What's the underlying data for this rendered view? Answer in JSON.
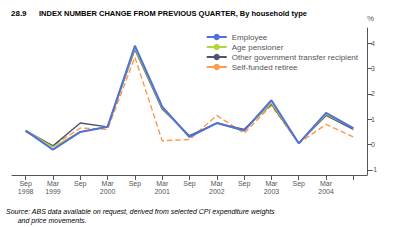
{
  "chart_data": {
    "type": "line",
    "title": "28.9",
    "subtitle": "INDEX NUMBER CHANGE FROM PREVIOUS QUARTER, By household type",
    "annotations": [
      "Source: ABS data available on request, derived from selected CPI expenditure weights\n      and price movements."
    ],
    "ylabel": "%",
    "categories": [
      "Sep\n1998",
      "Mar\n1999",
      "Sep",
      "Mar\n2000",
      "Sep",
      "Mar\n2001",
      "Sep",
      "Mar\n2002",
      "Sep",
      "Mar\n2003",
      "Sep",
      "Mar\n2004",
      null
    ],
    "series": [
      {
        "name": "Employee",
        "line_style": "solid",
        "values": [
          0.55,
          -0.2,
          0.5,
          0.7,
          3.9,
          1.5,
          0.3,
          0.85,
          0.55,
          1.75,
          0.05,
          1.25,
          0.65
        ]
      },
      {
        "name": "Age pensioner",
        "line_style": "solid",
        "values": [
          0.55,
          -0.1,
          0.5,
          0.7,
          3.8,
          1.45,
          0.3,
          0.85,
          0.55,
          1.65,
          0.05,
          1.2,
          0.65
        ]
      },
      {
        "name": "Other government transfer recipient",
        "line_style": "solid",
        "values": [
          0.55,
          -0.05,
          0.85,
          0.7,
          3.75,
          1.4,
          0.35,
          0.85,
          0.6,
          1.6,
          0.05,
          1.15,
          0.6
        ]
      },
      {
        "name": "Self-funded retiree",
        "line_style": "dashed",
        "values": [
          0.5,
          -0.05,
          0.65,
          0.6,
          3.45,
          0.15,
          0.2,
          1.15,
          0.45,
          1.55,
          0.05,
          0.8,
          0.3
        ]
      }
    ],
    "ylim": [
      -1.2,
      4.6
    ],
    "yticks": [
      -1,
      0,
      1,
      2,
      3,
      4
    ],
    "grid": false,
    "legend": "upper right"
  }
}
